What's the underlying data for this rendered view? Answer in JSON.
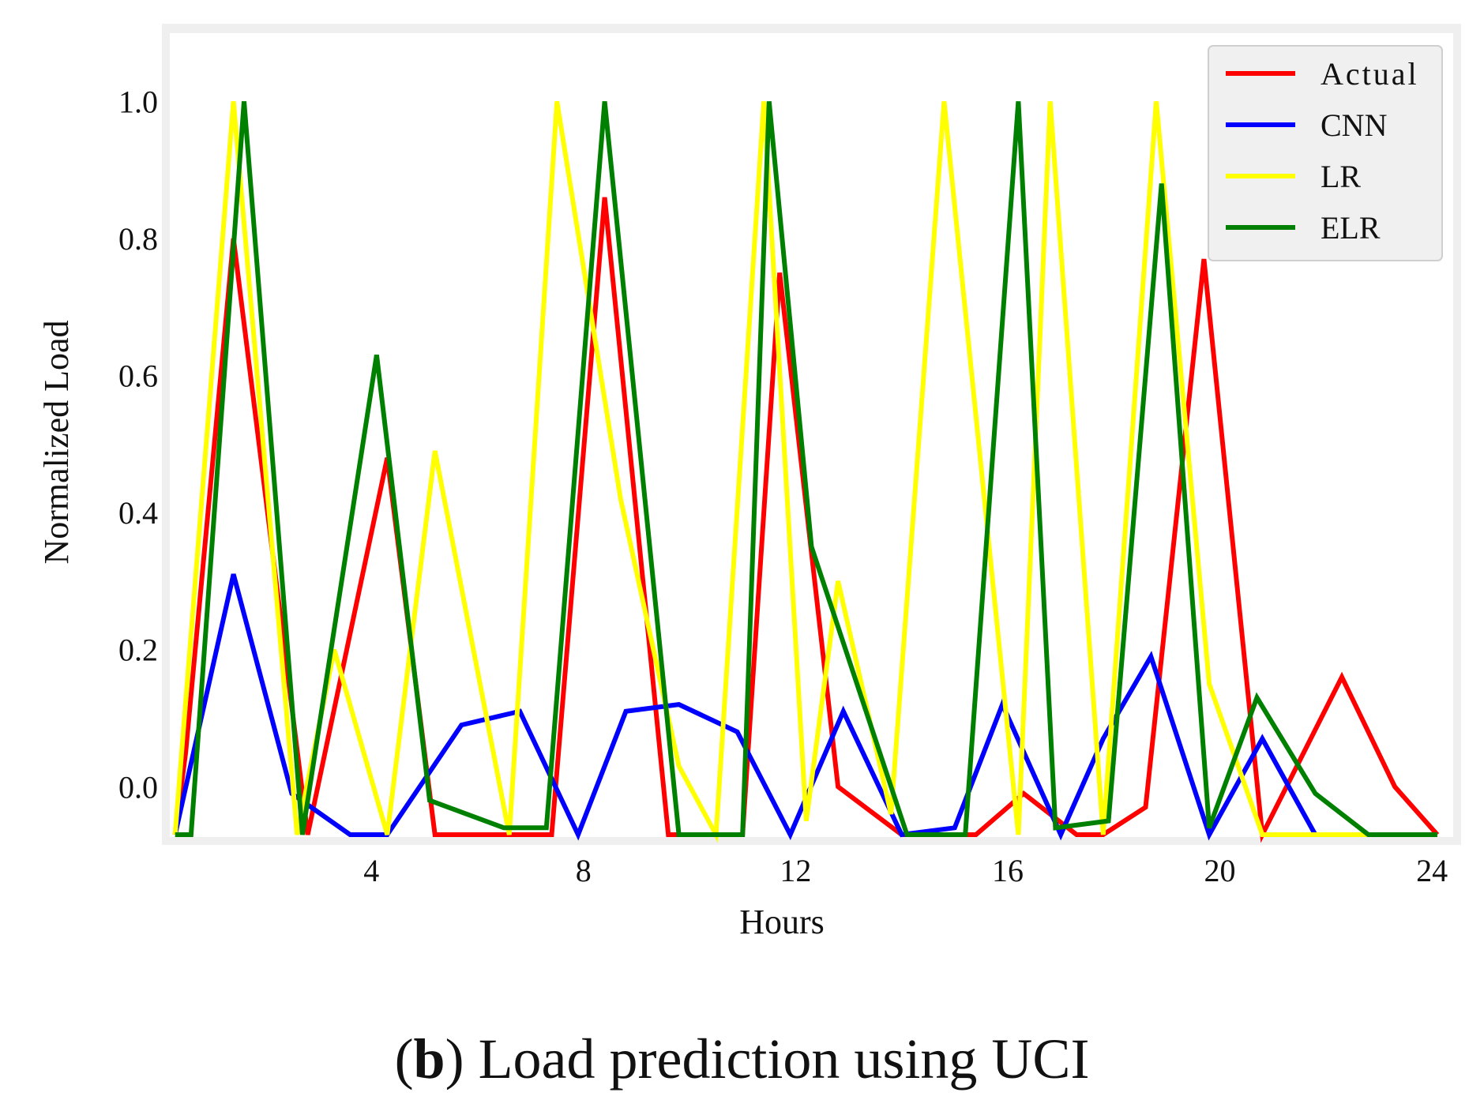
{
  "caption": {
    "open_paren": "(",
    "label": "b",
    "rest": ") Load prediction using UCI"
  },
  "chart_data": {
    "type": "line",
    "title": "",
    "xlabel": "Hours",
    "ylabel": "Normalized Load",
    "xlim": [
      0.2,
      24.4
    ],
    "ylim": [
      -0.07,
      1.05
    ],
    "xticks": [
      4,
      8,
      12,
      16,
      20,
      24
    ],
    "yticks": [
      0.0,
      0.2,
      0.4,
      0.6,
      0.8,
      1.0
    ],
    "xtick_labels": [
      "4",
      "8",
      "12",
      "16",
      "20",
      "24"
    ],
    "ytick_labels": [
      "0.0",
      "0.2",
      "0.4",
      "0.6",
      "0.8",
      "1.0"
    ],
    "grid": false,
    "legend_position": "top-right",
    "series": [
      {
        "name": "Actual",
        "color": "#ff0000",
        "x": [
          0.3,
          0.5,
          1.4,
          2.8,
          4.3,
          5.2,
          7.4,
          8.4,
          9.6,
          11.0,
          11.7,
          12.8,
          14.0,
          15.4,
          16.3,
          17.3,
          17.8,
          18.6,
          19.7,
          20.8,
          22.3,
          23.3,
          24.1
        ],
        "y": [
          -0.07,
          0.05,
          0.8,
          -0.07,
          0.48,
          -0.07,
          -0.07,
          0.86,
          -0.07,
          -0.07,
          0.75,
          0.0,
          -0.07,
          -0.07,
          -0.01,
          -0.07,
          -0.07,
          -0.03,
          0.77,
          -0.07,
          0.16,
          0.0,
          -0.07
        ]
      },
      {
        "name": "CNN",
        "color": "#0000ff",
        "x": [
          0.3,
          1.4,
          2.5,
          3.6,
          4.3,
          5.7,
          6.8,
          7.9,
          8.8,
          9.8,
          10.9,
          11.9,
          12.9,
          14.0,
          15.0,
          15.9,
          17.0,
          17.8,
          18.7,
          19.8,
          20.8,
          21.8,
          22.8,
          24.1
        ],
        "y": [
          -0.07,
          0.31,
          -0.01,
          -0.07,
          -0.07,
          0.09,
          0.11,
          -0.07,
          0.11,
          0.12,
          0.08,
          -0.07,
          0.11,
          -0.07,
          -0.06,
          0.12,
          -0.07,
          0.07,
          0.19,
          -0.07,
          0.07,
          -0.07,
          -0.07,
          -0.07
        ]
      },
      {
        "name": "LR",
        "color": "#ffff00",
        "x": [
          0.3,
          1.4,
          2.6,
          3.3,
          4.3,
          5.2,
          6.6,
          7.5,
          8.7,
          9.8,
          10.5,
          11.4,
          12.2,
          12.8,
          13.8,
          14.8,
          16.2,
          16.8,
          17.8,
          18.8,
          19.8,
          20.8,
          22.3,
          23.3,
          24.1
        ],
        "y": [
          -0.07,
          1.0,
          -0.07,
          0.2,
          -0.07,
          0.49,
          -0.07,
          1.0,
          0.42,
          0.03,
          -0.07,
          1.0,
          -0.05,
          0.3,
          -0.04,
          1.0,
          -0.07,
          1.0,
          -0.07,
          1.0,
          0.15,
          -0.07,
          -0.07,
          -0.07,
          -0.07
        ]
      },
      {
        "name": "ELR",
        "color": "#008000",
        "x": [
          0.3,
          0.6,
          1.6,
          2.7,
          4.1,
          5.1,
          6.5,
          7.3,
          8.4,
          9.8,
          11.0,
          11.5,
          12.3,
          14.1,
          15.2,
          16.2,
          16.9,
          17.9,
          18.9,
          19.8,
          20.7,
          21.8,
          22.8,
          24.1
        ],
        "y": [
          -0.07,
          -0.07,
          1.0,
          -0.07,
          0.63,
          -0.02,
          -0.06,
          -0.06,
          1.0,
          -0.07,
          -0.07,
          1.0,
          0.35,
          -0.07,
          -0.07,
          1.0,
          -0.06,
          -0.05,
          0.88,
          -0.06,
          0.13,
          -0.01,
          -0.07,
          -0.07
        ]
      }
    ]
  }
}
